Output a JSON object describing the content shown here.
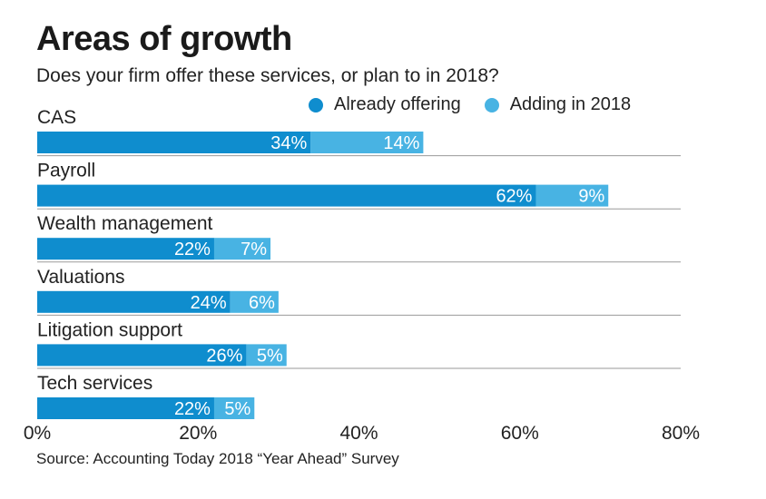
{
  "chart_data": {
    "type": "bar",
    "orientation": "horizontal",
    "stacked": true,
    "title": "Areas of growth",
    "subtitle": "Does your firm offer these services, or plan to in 2018?",
    "categories": [
      "CAS",
      "Payroll",
      "Wealth management",
      "Valuations",
      "Litigation support",
      "Tech services"
    ],
    "series": [
      {
        "name": "Already offering",
        "color": "#0f8dce",
        "values": [
          34,
          62,
          22,
          24,
          26,
          22
        ],
        "labels": [
          "34%",
          "62%",
          "22%",
          "24%",
          "26%",
          "22%"
        ]
      },
      {
        "name": "Adding in 2018",
        "color": "#48b3e3",
        "values": [
          14,
          9,
          7,
          6,
          5,
          5
        ],
        "labels": [
          "14%",
          "9%",
          "7%",
          "6%",
          "5%",
          "5%"
        ]
      }
    ],
    "xlim": [
      0,
      80
    ],
    "xticks": [
      0,
      20,
      40,
      60,
      80
    ],
    "xtick_labels": [
      "0%",
      "20%",
      "40%",
      "60%",
      "80%"
    ],
    "legend_position": "top-right",
    "source": "Source: Accounting Today 2018 “Year Ahead” Survey"
  }
}
